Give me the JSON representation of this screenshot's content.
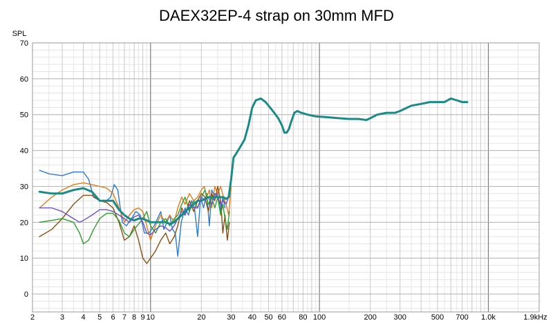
{
  "chart_data": {
    "type": "line",
    "title": "DAEX32EP-4 strap on 30mm MFD",
    "ylabel": "SPL",
    "xscale": "log",
    "xlim": [
      2,
      2000
    ],
    "ylim": [
      -5,
      70
    ],
    "grid": true,
    "legend": "none",
    "y_ticks": [
      0,
      10,
      20,
      30,
      40,
      50,
      60,
      70
    ],
    "x_ticks": [
      {
        "value": 2,
        "label": "2"
      },
      {
        "value": 3,
        "label": "3"
      },
      {
        "value": 4,
        "label": "4"
      },
      {
        "value": 5,
        "label": "5"
      },
      {
        "value": 6,
        "label": "6"
      },
      {
        "value": 7,
        "label": "7"
      },
      {
        "value": 8,
        "label": "8"
      },
      {
        "value": 9,
        "label": "9"
      },
      {
        "value": 10,
        "label": "10"
      },
      {
        "value": 20,
        "label": "20"
      },
      {
        "value": 30,
        "label": "30"
      },
      {
        "value": 40,
        "label": "40"
      },
      {
        "value": 50,
        "label": "50"
      },
      {
        "value": 60,
        "label": "60"
      },
      {
        "value": 80,
        "label": "80"
      },
      {
        "value": 100,
        "label": "100"
      },
      {
        "value": 200,
        "label": "200"
      },
      {
        "value": 300,
        "label": "300"
      },
      {
        "value": 500,
        "label": "500"
      },
      {
        "value": 700,
        "label": "700"
      },
      {
        "value": 1000,
        "label": "1.0k"
      },
      {
        "value": 1900,
        "label": "1.9kHz"
      }
    ],
    "series": [
      {
        "color": "#2b7bd0",
        "points": [
          [
            2.2,
            34.5
          ],
          [
            2.5,
            33.5
          ],
          [
            3,
            33
          ],
          [
            3.5,
            34
          ],
          [
            4,
            34
          ],
          [
            4.3,
            32
          ],
          [
            4.6,
            27
          ],
          [
            5,
            26
          ],
          [
            5.5,
            26
          ],
          [
            5.8,
            27
          ],
          [
            6.1,
            30.5
          ],
          [
            6.4,
            29
          ],
          [
            6.8,
            20
          ],
          [
            7.2,
            19
          ],
          [
            7.7,
            21
          ],
          [
            8.2,
            23
          ],
          [
            8.7,
            22
          ],
          [
            9.2,
            17
          ],
          [
            9.8,
            17
          ],
          [
            10.5,
            19
          ],
          [
            11,
            21
          ],
          [
            11.5,
            23
          ],
          [
            12,
            18
          ],
          [
            12.5,
            20
          ],
          [
            13,
            22
          ],
          [
            13.5,
            18
          ],
          [
            14,
            17
          ],
          [
            14.5,
            10.5
          ],
          [
            15.2,
            20
          ],
          [
            16,
            24
          ],
          [
            16.8,
            22
          ],
          [
            17.5,
            26
          ],
          [
            18.2,
            24
          ],
          [
            19,
            16
          ],
          [
            19.8,
            27
          ],
          [
            20.6,
            24
          ],
          [
            21.5,
            28
          ],
          [
            22.3,
            19
          ],
          [
            23,
            29
          ],
          [
            24,
            27
          ],
          [
            25,
            28
          ],
          [
            26,
            23
          ],
          [
            26.8,
            27
          ],
          [
            27.6,
            24
          ]
        ]
      },
      {
        "color": "#e07b15",
        "points": [
          [
            2.2,
            24
          ],
          [
            2.6,
            27
          ],
          [
            3,
            29
          ],
          [
            3.5,
            30.5
          ],
          [
            4,
            31
          ],
          [
            4.5,
            30.5
          ],
          [
            5,
            30
          ],
          [
            5.5,
            29.5
          ],
          [
            6,
            28
          ],
          [
            6.5,
            24
          ],
          [
            7,
            20
          ],
          [
            7.5,
            22
          ],
          [
            8,
            23.5
          ],
          [
            8.5,
            24
          ],
          [
            9,
            23
          ],
          [
            9.5,
            19
          ],
          [
            10,
            15
          ],
          [
            10.7,
            19
          ],
          [
            11.5,
            22
          ],
          [
            12.3,
            20
          ],
          [
            13,
            22
          ],
          [
            13.8,
            20
          ],
          [
            14.5,
            24
          ],
          [
            15.3,
            27
          ],
          [
            16,
            25
          ],
          [
            17,
            28
          ],
          [
            18,
            26
          ],
          [
            19,
            27
          ],
          [
            20,
            29
          ],
          [
            20.8,
            30
          ],
          [
            21.5,
            27
          ],
          [
            22.3,
            29
          ],
          [
            23,
            24
          ],
          [
            24,
            30
          ],
          [
            25,
            28
          ],
          [
            26,
            30
          ],
          [
            27,
            27
          ],
          [
            28,
            25
          ],
          [
            29,
            22
          ],
          [
            30,
            30
          ]
        ]
      },
      {
        "color": "#8b4e10",
        "points": [
          [
            2.2,
            16
          ],
          [
            2.6,
            18
          ],
          [
            3,
            21
          ],
          [
            3.5,
            25
          ],
          [
            4,
            27.5
          ],
          [
            4.5,
            27.5
          ],
          [
            5,
            26
          ],
          [
            5.5,
            25.5
          ],
          [
            6,
            24
          ],
          [
            6.5,
            20
          ],
          [
            7,
            15
          ],
          [
            7.5,
            16
          ],
          [
            8,
            19
          ],
          [
            8.5,
            15
          ],
          [
            9,
            10
          ],
          [
            9.5,
            8.5
          ],
          [
            10,
            10
          ],
          [
            10.7,
            12
          ],
          [
            11.5,
            15
          ],
          [
            12.3,
            17
          ],
          [
            13,
            14
          ],
          [
            13.8,
            16
          ],
          [
            14.5,
            19
          ],
          [
            15.3,
            24
          ],
          [
            16,
            22
          ],
          [
            17,
            26
          ],
          [
            18,
            23
          ],
          [
            19,
            26
          ],
          [
            20,
            28
          ],
          [
            21,
            27
          ],
          [
            22,
            23
          ],
          [
            23,
            28
          ],
          [
            24,
            26
          ],
          [
            25,
            30
          ],
          [
            26,
            26
          ],
          [
            26.8,
            17
          ],
          [
            27.6,
            22
          ],
          [
            28.5,
            15
          ],
          [
            29.3,
            20
          ]
        ]
      },
      {
        "color": "#2e9e2e",
        "points": [
          [
            2.2,
            20
          ],
          [
            2.6,
            20.5
          ],
          [
            3,
            21
          ],
          [
            3.5,
            20
          ],
          [
            3.8,
            17
          ],
          [
            4,
            14
          ],
          [
            4.3,
            15
          ],
          [
            4.6,
            18
          ],
          [
            5,
            21
          ],
          [
            5.5,
            22.5
          ],
          [
            6,
            22.5
          ],
          [
            6.5,
            20.5
          ],
          [
            7,
            17
          ],
          [
            7.5,
            16
          ],
          [
            8,
            18
          ],
          [
            8.5,
            19.5
          ],
          [
            9,
            21
          ],
          [
            9.5,
            23
          ],
          [
            10,
            19
          ],
          [
            10.7,
            17
          ],
          [
            11.5,
            20
          ],
          [
            12.3,
            21
          ],
          [
            13,
            19
          ],
          [
            13.8,
            21
          ],
          [
            14.5,
            22
          ],
          [
            15.3,
            25
          ],
          [
            16,
            27
          ],
          [
            17,
            23
          ],
          [
            18,
            26
          ],
          [
            19,
            24
          ],
          [
            20,
            27
          ],
          [
            21,
            29
          ],
          [
            22,
            25
          ],
          [
            23,
            27
          ],
          [
            24,
            24
          ],
          [
            25,
            27
          ],
          [
            26,
            22
          ],
          [
            26.8,
            25
          ],
          [
            27.6,
            21
          ],
          [
            28.5,
            18
          ],
          [
            29.3,
            23
          ]
        ]
      },
      {
        "color": "#6a52c8",
        "points": [
          [
            2.2,
            24
          ],
          [
            2.6,
            24
          ],
          [
            3,
            23
          ],
          [
            3.5,
            21
          ],
          [
            3.8,
            20
          ],
          [
            4,
            20.5
          ],
          [
            4.5,
            22
          ],
          [
            5,
            23.5
          ],
          [
            5.5,
            23.5
          ],
          [
            6,
            23
          ],
          [
            6.5,
            22
          ],
          [
            7,
            21
          ],
          [
            7.5,
            20
          ],
          [
            8,
            21.5
          ],
          [
            8.5,
            22
          ],
          [
            9,
            20
          ],
          [
            9.5,
            17
          ],
          [
            10,
            16.5
          ],
          [
            10.7,
            18
          ],
          [
            11.5,
            19
          ],
          [
            12.3,
            18.5
          ],
          [
            13,
            17.5
          ],
          [
            13.8,
            19
          ],
          [
            14.5,
            21
          ],
          [
            15.3,
            23
          ],
          [
            16,
            22
          ],
          [
            17,
            25
          ],
          [
            18,
            24
          ],
          [
            19,
            24
          ],
          [
            20,
            27
          ],
          [
            21,
            26
          ],
          [
            22,
            27
          ],
          [
            23,
            25
          ],
          [
            24,
            28
          ],
          [
            25,
            27
          ],
          [
            26,
            25
          ],
          [
            27,
            26
          ],
          [
            28,
            25
          ],
          [
            29,
            27
          ]
        ]
      },
      {
        "color": "#1a8a86",
        "points": [
          [
            2.2,
            28.5
          ],
          [
            2.6,
            28
          ],
          [
            3,
            28
          ],
          [
            3.5,
            29
          ],
          [
            4,
            29.5
          ],
          [
            4.5,
            28.5
          ],
          [
            5,
            26
          ],
          [
            5.5,
            26
          ],
          [
            6,
            26
          ],
          [
            6.5,
            23.5
          ],
          [
            7,
            22
          ],
          [
            7.5,
            21
          ],
          [
            8,
            20.5
          ],
          [
            8.5,
            21
          ],
          [
            9,
            21
          ],
          [
            9.5,
            20.5
          ],
          [
            10,
            20
          ],
          [
            10.7,
            20
          ],
          [
            11.5,
            20
          ],
          [
            12.3,
            20
          ],
          [
            13,
            19.5
          ],
          [
            13.8,
            20
          ],
          [
            14.5,
            21
          ],
          [
            15.3,
            22
          ],
          [
            16,
            23
          ],
          [
            17,
            24
          ],
          [
            18,
            25
          ],
          [
            19,
            26
          ],
          [
            20,
            26
          ],
          [
            21,
            26.5
          ],
          [
            22,
            27
          ],
          [
            23,
            27
          ],
          [
            24,
            27
          ],
          [
            25,
            27
          ],
          [
            26,
            27
          ],
          [
            27,
            27
          ],
          [
            28,
            26.5
          ],
          [
            29,
            27
          ],
          [
            30,
            32
          ],
          [
            31,
            38
          ],
          [
            32,
            39
          ],
          [
            34,
            41
          ],
          [
            36,
            43
          ],
          [
            38,
            47
          ],
          [
            40,
            52
          ],
          [
            42,
            54
          ],
          [
            45,
            54.5
          ],
          [
            48,
            53.5
          ],
          [
            51,
            52
          ],
          [
            54,
            50.5
          ],
          [
            57,
            49
          ],
          [
            60,
            47
          ],
          [
            62,
            45
          ],
          [
            64,
            45
          ],
          [
            66,
            46
          ],
          [
            68,
            48
          ],
          [
            71,
            50.5
          ],
          [
            74,
            51
          ],
          [
            78,
            50.5
          ],
          [
            85,
            50
          ],
          [
            95,
            49.5
          ],
          [
            110,
            49.3
          ],
          [
            130,
            49
          ],
          [
            150,
            48.8
          ],
          [
            170,
            48.8
          ],
          [
            190,
            48.5
          ],
          [
            200,
            49
          ],
          [
            220,
            50
          ],
          [
            250,
            50.5
          ],
          [
            280,
            50.5
          ],
          [
            300,
            51
          ],
          [
            350,
            52.5
          ],
          [
            400,
            53
          ],
          [
            450,
            53.5
          ],
          [
            500,
            53.5
          ],
          [
            550,
            53.5
          ],
          [
            600,
            54.5
          ],
          [
            650,
            54
          ],
          [
            700,
            53.5
          ],
          [
            750,
            53.5
          ]
        ]
      }
    ]
  }
}
